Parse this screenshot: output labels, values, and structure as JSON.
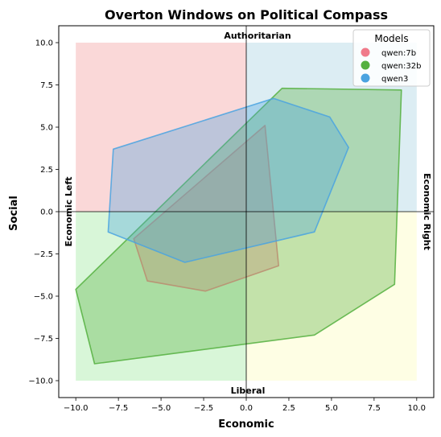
{
  "chart_data": {
    "type": "area",
    "title": "Overton Windows on Political Compass",
    "xlabel": "Economic",
    "ylabel": "Social",
    "xlim": [
      -11,
      11
    ],
    "ylim": [
      -11,
      11
    ],
    "xticks": [
      -10.0,
      -7.5,
      -5.0,
      -2.5,
      0.0,
      2.5,
      5.0,
      7.5,
      10.0
    ],
    "xtick_labels": [
      "−10.0",
      "−7.5",
      "−5.0",
      "−2.5",
      "0.0",
      "2.5",
      "5.0",
      "7.5",
      "10.0"
    ],
    "yticks": [
      -10.0,
      -7.5,
      -5.0,
      -2.5,
      0.0,
      2.5,
      5.0,
      7.5,
      10.0
    ],
    "ytick_labels": [
      "−10.0",
      "−7.5",
      "−5.0",
      "−2.5",
      "0.0",
      "2.5",
      "5.0",
      "7.5",
      "10.0"
    ],
    "grid": false,
    "quadrant_labels": {
      "top": "Authoritarian",
      "bottom": "Liberal",
      "left": "Economic Left",
      "right": "Economic Right"
    },
    "quadrants": [
      {
        "name": "authoritarian-left",
        "color": "#f8c8c8",
        "x": [
          -10,
          0
        ],
        "y": [
          0,
          10
        ]
      },
      {
        "name": "authoritarian-right",
        "color": "#cde6ee",
        "x": [
          0,
          10
        ],
        "y": [
          0,
          10
        ]
      },
      {
        "name": "libertarian-left",
        "color": "#c8f2c8",
        "x": [
          -10,
          0
        ],
        "y": [
          -10,
          0
        ]
      },
      {
        "name": "libertarian-right",
        "color": "#fdfdd8",
        "x": [
          0,
          10
        ],
        "y": [
          -10,
          0
        ]
      }
    ],
    "legend": {
      "title": "Models",
      "position": "top-right"
    },
    "series": [
      {
        "name": "qwen:7b",
        "color": "#f07a8a",
        "points": [
          [
            1.1,
            5.1
          ],
          [
            1.9,
            -3.2
          ],
          [
            -2.4,
            -4.7
          ],
          [
            -5.8,
            -4.1
          ],
          [
            -6.6,
            -1.6
          ]
        ]
      },
      {
        "name": "qwen:32b",
        "color": "#55b040",
        "points": [
          [
            2.1,
            7.3
          ],
          [
            9.1,
            7.2
          ],
          [
            8.7,
            -4.3
          ],
          [
            4.0,
            -7.3
          ],
          [
            -8.9,
            -9.0
          ],
          [
            -9.5,
            -6.6
          ],
          [
            -10.0,
            -4.6
          ]
        ]
      },
      {
        "name": "qwen3",
        "color": "#4aa3e0",
        "points": [
          [
            1.6,
            6.7
          ],
          [
            4.9,
            5.6
          ],
          [
            6.0,
            3.8
          ],
          [
            4.0,
            -1.2
          ],
          [
            -3.6,
            -3.0
          ],
          [
            -8.1,
            -1.2
          ],
          [
            -7.8,
            3.7
          ]
        ]
      }
    ]
  }
}
